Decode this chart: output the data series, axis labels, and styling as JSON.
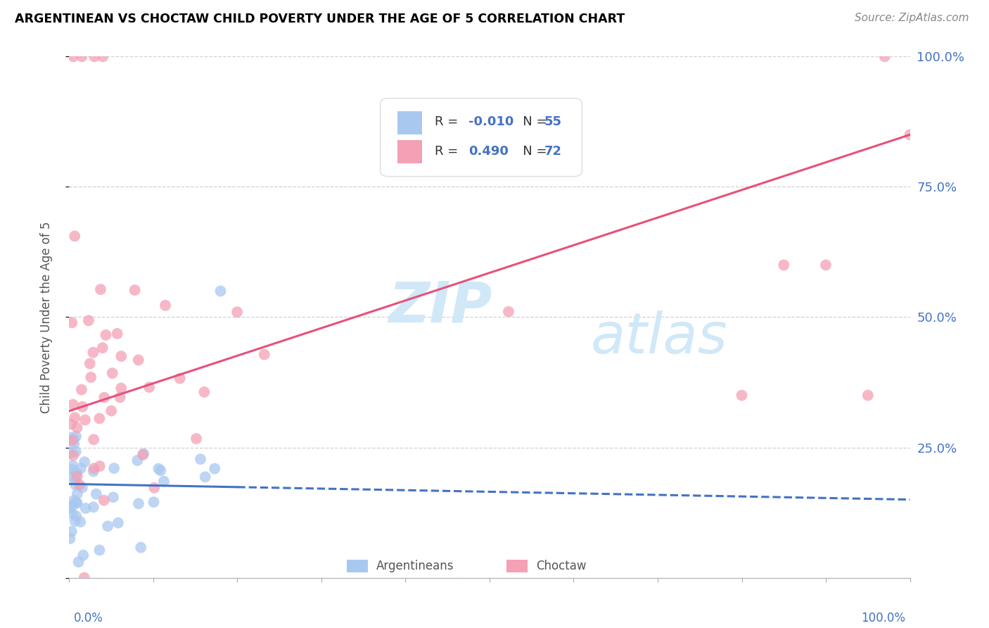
{
  "title": "ARGENTINEAN VS CHOCTAW CHILD POVERTY UNDER THE AGE OF 5 CORRELATION CHART",
  "source": "Source: ZipAtlas.com",
  "ylabel": "Child Poverty Under the Age of 5",
  "blue_color": "#A8C8F0",
  "pink_color": "#F4A0B5",
  "blue_line_color": "#4472C4",
  "pink_line_color": "#E8507A",
  "grid_color": "#CCCCCC",
  "right_tick_color": "#4472C4",
  "watermark_color": "#D0E8F8",
  "xlim": [
    0,
    100
  ],
  "ylim": [
    0,
    100
  ],
  "yticks": [
    0,
    25,
    50,
    75,
    100
  ],
  "ytick_labels": [
    "",
    "25.0%",
    "50.0%",
    "75.0%",
    "100.0%"
  ],
  "legend_r1": "-0.010",
  "legend_n1": "55",
  "legend_r2": "0.490",
  "legend_n2": "72",
  "pink_line_x0": 0,
  "pink_line_y0": 32,
  "pink_line_x1": 100,
  "pink_line_y1": 85,
  "blue_line_x0": 0,
  "blue_line_y0": 18,
  "blue_line_x1": 100,
  "blue_line_y1": 15
}
